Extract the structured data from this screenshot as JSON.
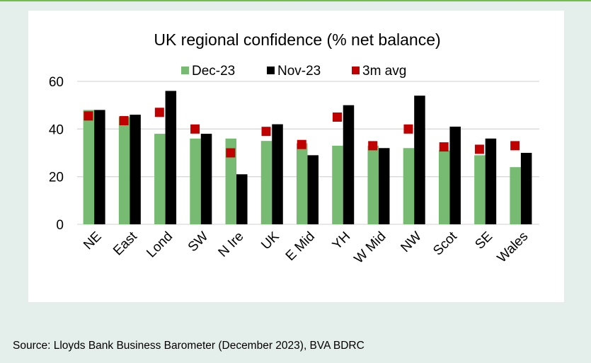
{
  "chart_data": {
    "type": "bar",
    "title": "UK regional confidence (% net balance)",
    "xlabel": "",
    "ylabel": "",
    "ylim": [
      0,
      60
    ],
    "yticks": [
      0,
      20,
      40,
      60
    ],
    "grid": true,
    "legend": "top",
    "categories": [
      "NE",
      "East",
      "Lond",
      "SW",
      "N Ire",
      "UK",
      "E Mid",
      "YH",
      "W Mid",
      "NW",
      "Scot",
      "SE",
      "Wales"
    ],
    "series": [
      {
        "name": "Dec-23",
        "kind": "bar",
        "color": "#77bb72",
        "values": [
          48,
          45,
          38,
          36,
          36,
          35,
          34,
          33,
          33,
          32,
          31,
          29,
          24
        ]
      },
      {
        "name": "Nov-23",
        "kind": "bar",
        "color": "#000000",
        "values": [
          48,
          46,
          56,
          38,
          21,
          42,
          29,
          50,
          32,
          54,
          41,
          36,
          30
        ]
      },
      {
        "name": "3m avg",
        "kind": "marker",
        "color": "#c00000",
        "values": [
          45.5,
          43.5,
          47,
          40,
          30,
          39,
          33.5,
          45,
          33,
          40,
          32.5,
          31.5,
          33
        ]
      }
    ]
  },
  "source": "Source: Lloyds Bank Business Barometer (December 2023), BVA BDRC"
}
